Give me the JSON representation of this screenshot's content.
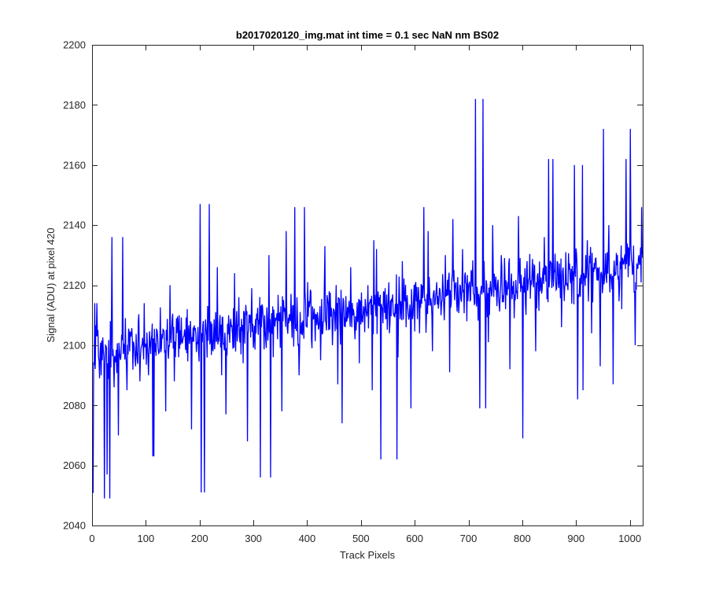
{
  "chart_data": {
    "type": "line",
    "title": "b2017020120_img.mat int time = 0.1 sec  NaN nm BS02",
    "xlabel": "Track Pixels",
    "ylabel": "Signal (ADU) at pixel 420",
    "xlim": [
      0,
      1024
    ],
    "ylim": [
      2040,
      2200
    ],
    "xticks": [
      0,
      100,
      200,
      300,
      400,
      500,
      600,
      700,
      800,
      900,
      1000
    ],
    "yticks": [
      2040,
      2060,
      2080,
      2100,
      2120,
      2140,
      2160,
      2180,
      2200
    ],
    "grid": false,
    "legend": "none",
    "series": [
      {
        "color": "#0000ff",
        "x_start": 1,
        "x_step": 1,
        "trend_start": 2098,
        "trend_end": 2126,
        "noise_amplitude": 13,
        "values_sampled_every_8px": [
          2051,
          2114,
          2090,
          2100,
          2049,
          2086,
          2070,
          2136,
          2085,
          2104,
          2093,
          2088,
          2114,
          2090,
          2063,
          2105,
          2099,
          2078,
          2120,
          2088,
          2096,
          2102,
          2112,
          2072,
          2104,
          2147,
          2051,
          2110,
          2098,
          2126,
          2090,
          2077,
          2107,
          2124,
          2116,
          2094,
          2068,
          2119,
          2104,
          2056,
          2110,
          2130,
          2096,
          2102,
          2078,
          2138,
          2108,
          2146,
          2090,
          2106,
          2121,
          2099,
          2110,
          2095,
          2133,
          2118,
          2112,
          2087,
          2074,
          2108,
          2126,
          2102,
          2094,
          2113,
          2120,
          2085,
          2132,
          2062,
          2119,
          2104,
          2110,
          2096,
          2128,
          2115,
          2079,
          2120,
          2104,
          2146,
          2138,
          2098,
          2121,
          2110,
          2130,
          2091,
          2125,
          2115,
          2132,
          2108,
          2125,
          2182,
          2079,
          2128,
          2101,
          2140,
          2113,
          2130,
          2112,
          2092,
          2109,
          2143,
          2069,
          2128,
          2120,
          2098,
          2118,
          2136,
          2105,
          2162,
          2128,
          2106,
          2131,
          2122,
          2160,
          2116,
          2085,
          2135,
          2104,
          2129,
          2093,
          2122,
          2140,
          2087,
          2130,
          2112,
          2162,
          2172,
          2118,
          2130,
          2125,
          2096,
          2144,
          2121,
          2110,
          2156,
          2100,
          2146
        ],
        "pinned_points": [
          {
            "x": 2,
            "y": 2051
          },
          {
            "x": 5,
            "y": 2114
          },
          {
            "x": 10,
            "y": 2103
          },
          {
            "x": 23,
            "y": 2049
          },
          {
            "x": 28,
            "y": 2057
          },
          {
            "x": 37,
            "y": 2136
          },
          {
            "x": 64,
            "y": 2093
          },
          {
            "x": 115,
            "y": 2063
          },
          {
            "x": 203,
            "y": 2051
          },
          {
            "x": 218,
            "y": 2147
          },
          {
            "x": 332,
            "y": 2056
          },
          {
            "x": 395,
            "y": 2146
          },
          {
            "x": 524,
            "y": 2135
          },
          {
            "x": 567,
            "y": 2062
          },
          {
            "x": 671,
            "y": 2142
          },
          {
            "x": 727,
            "y": 2182
          },
          {
            "x": 732,
            "y": 2079
          },
          {
            "x": 849,
            "y": 2162
          },
          {
            "x": 903,
            "y": 2082
          },
          {
            "x": 912,
            "y": 2160
          },
          {
            "x": 951,
            "y": 2172
          },
          {
            "x": 1010,
            "y": 2100
          },
          {
            "x": 1022,
            "y": 2146
          }
        ]
      }
    ]
  }
}
